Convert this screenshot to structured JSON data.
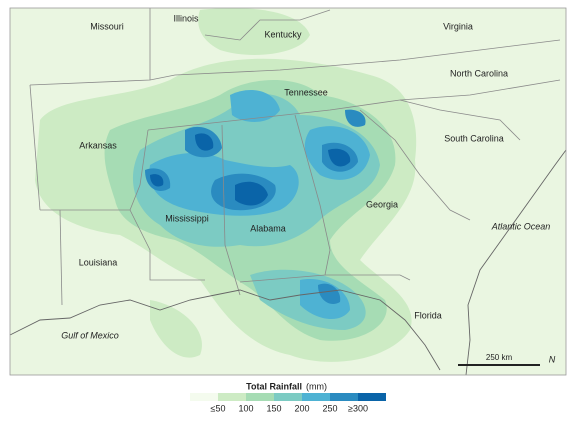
{
  "map": {
    "labels": [
      "Missouri",
      "Illinois",
      "Kentucky",
      "Virginia",
      "Tennessee",
      "North Carolina",
      "Arkansas",
      "South Carolina",
      "Mississippi",
      "Georgia",
      "Alabama",
      "Louisiana",
      "Florida"
    ],
    "water_labels": [
      "Atlantic Ocean",
      "Gulf of Mexico"
    ],
    "scale_bar": "250 km",
    "north": "N",
    "legend": {
      "title": "Total Rainfall",
      "unit": "(mm)",
      "colors": [
        "#f4fbee",
        "#cdebc4",
        "#a6dcb4",
        "#7ccbc3",
        "#4eb2d3",
        "#2a8bc0",
        "#0a64a8"
      ],
      "labels": [
        "≤50",
        "100",
        "150",
        "200",
        "250",
        "≥300"
      ]
    }
  }
}
